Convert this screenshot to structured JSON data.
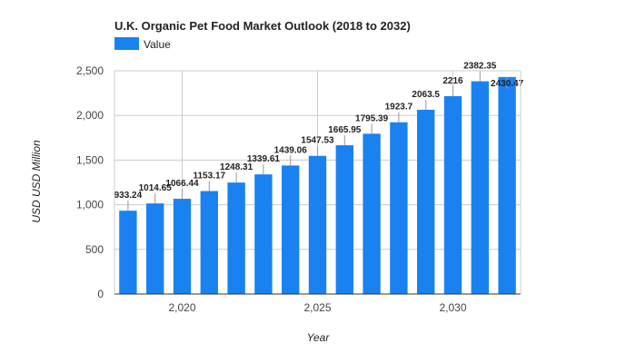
{
  "chart_data": {
    "type": "bar",
    "title": "U.K.  Organic Pet Food Market Outlook (2018 to 2032)",
    "xlabel": "Year",
    "ylabel": "USD USD Million",
    "ylim": [
      0,
      2500
    ],
    "yticks": [
      0,
      500,
      1000,
      1500,
      2000,
      2500
    ],
    "ytick_labels": [
      "0",
      "500",
      "1,000",
      "1,500",
      "2,000",
      "2,500"
    ],
    "xticks": [
      2020,
      2025,
      2030
    ],
    "xtick_labels": [
      "2,020",
      "2,025",
      "2,030"
    ],
    "xlim": [
      2017.5,
      2032.5
    ],
    "grid": true,
    "legend_position": "top-left",
    "colors": {
      "bar": "#1a82f0",
      "grid": "#cccccc",
      "axis": "#333333"
    },
    "x": [
      2018,
      2019,
      2020,
      2021,
      2022,
      2023,
      2024,
      2025,
      2026,
      2027,
      2028,
      2029,
      2030,
      2031,
      2032
    ],
    "series": [
      {
        "name": "Value",
        "values": [
          933.24,
          1014.65,
          1066.44,
          1153.17,
          1248.31,
          1339.61,
          1439.06,
          1547.53,
          1665.95,
          1795.39,
          1923.7,
          2063.5,
          2216,
          2382.35,
          2430.47
        ],
        "labels": [
          "933.24",
          "1014.65",
          "1066.44",
          "1153.17",
          "1248.31",
          "1339.61",
          "1439.06",
          "1547.53",
          "1665.95",
          "1795.39",
          "1923.7",
          "2063.5",
          "2216",
          "2382.35",
          "2430.47"
        ]
      }
    ]
  }
}
